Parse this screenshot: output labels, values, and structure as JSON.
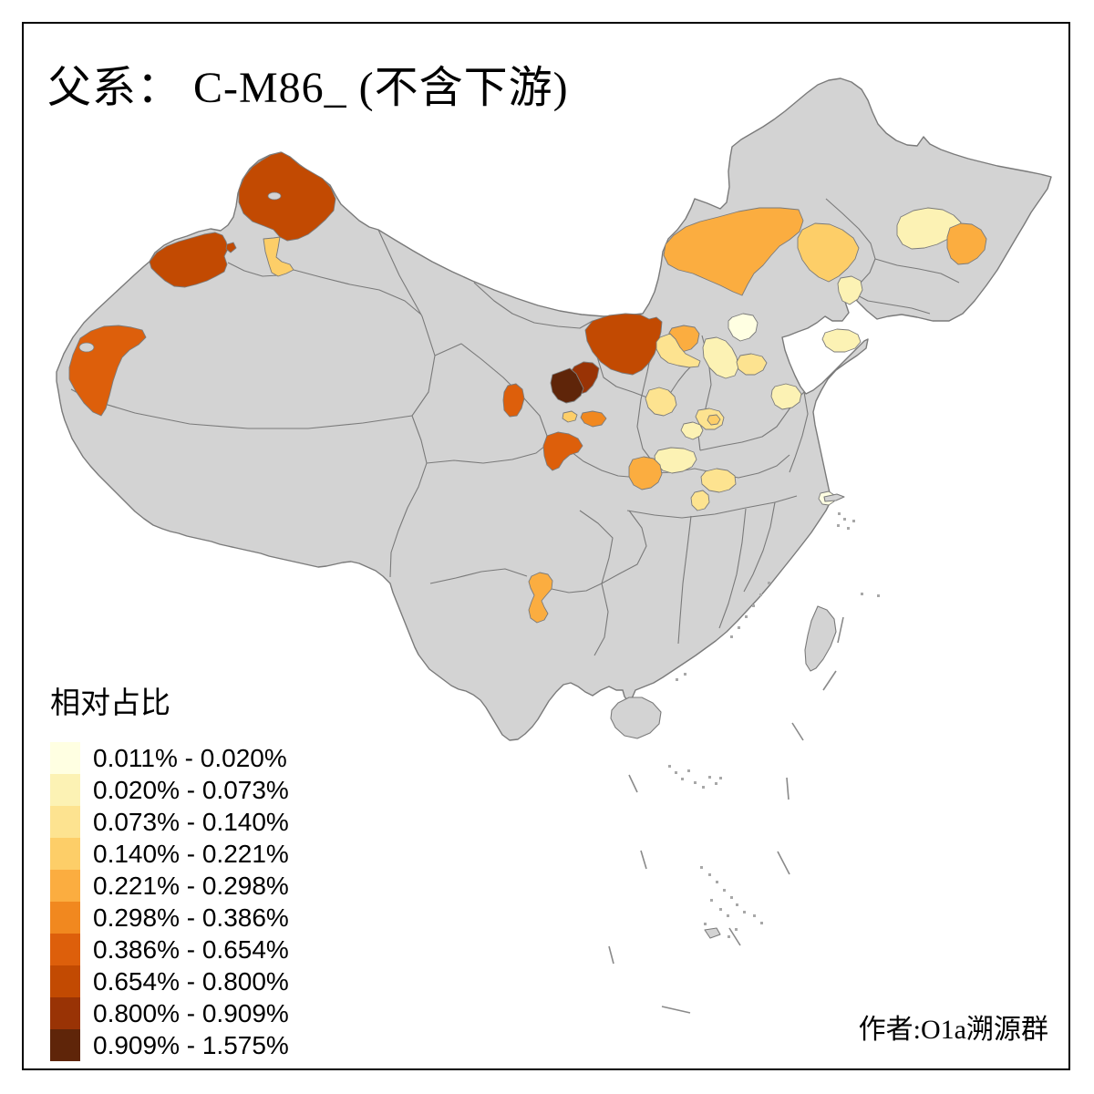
{
  "title": "父系： C-M86_ (不含下游)",
  "legend": {
    "title": "相对占比",
    "items": [
      {
        "range": "0.011% - 0.020%",
        "color": "#FFFFE2"
      },
      {
        "range": "0.020% - 0.073%",
        "color": "#FCF2B4"
      },
      {
        "range": "0.073% - 0.140%",
        "color": "#FDE390"
      },
      {
        "range": "0.140% - 0.221%",
        "color": "#FDCE68"
      },
      {
        "range": "0.221% - 0.298%",
        "color": "#FBAD40"
      },
      {
        "range": "0.298% - 0.386%",
        "color": "#F1881F"
      },
      {
        "range": "0.386% - 0.654%",
        "color": "#DD5F0B"
      },
      {
        "range": "0.654% - 0.800%",
        "color": "#C24A02"
      },
      {
        "range": "0.800% - 0.909%",
        "color": "#993305"
      },
      {
        "range": "0.909% - 1.575%",
        "color": "#5F2509"
      }
    ]
  },
  "attribution": "作者:O1a溯源群",
  "map": {
    "background": "#FFFFFF",
    "land_color": "#D3D3D3",
    "border_color": "#7A7A7A",
    "frame_color": "#000000",
    "regions": [
      {
        "id": "xinjiang-north-a",
        "bucket": 8
      },
      {
        "id": "xinjiang-west-a",
        "bucket": 8
      },
      {
        "id": "xinjiang-small-dot",
        "bucket": 8
      },
      {
        "id": "xinjiang-center-wedge",
        "bucket": 4
      },
      {
        "id": "xinjiang-southwest",
        "bucket": 7
      },
      {
        "id": "ordos-area",
        "bucket": 8
      },
      {
        "id": "ningxia-dark",
        "bucket": 9
      },
      {
        "id": "ningxia-darkest",
        "bucket": 10
      },
      {
        "id": "gansu-west",
        "bucket": 7
      },
      {
        "id": "gansu-small-a",
        "bucket": 4
      },
      {
        "id": "gansu-small-b",
        "bucket": 6
      },
      {
        "id": "lanzhou-area",
        "bucket": 7
      },
      {
        "id": "xilingol-area",
        "bucket": 5
      },
      {
        "id": "chifeng-area",
        "bucket": 4
      },
      {
        "id": "chifeng-tail",
        "bucket": 2
      },
      {
        "id": "heilongjiang-pale",
        "bucket": 2
      },
      {
        "id": "heilongjiang-orange",
        "bucket": 5
      },
      {
        "id": "shanxi-north",
        "bucket": 5
      },
      {
        "id": "shanxi-north-pale",
        "bucket": 3
      },
      {
        "id": "beijing-area",
        "bucket": 1
      },
      {
        "id": "hebei-central",
        "bucket": 2
      },
      {
        "id": "hebei-south",
        "bucket": 3
      },
      {
        "id": "shandong-peninsula",
        "bucket": 2
      },
      {
        "id": "shandong-central",
        "bucket": 2
      },
      {
        "id": "shanxi-west",
        "bucket": 3
      },
      {
        "id": "shanxi-southeast",
        "bucket": 3
      },
      {
        "id": "shanxi-southeast-dot",
        "bucket": 4
      },
      {
        "id": "shanxi-south",
        "bucket": 2
      },
      {
        "id": "henan-southwest",
        "bucket": 2
      },
      {
        "id": "hubei-northwest",
        "bucket": 5
      },
      {
        "id": "henan-south",
        "bucket": 3
      },
      {
        "id": "hubei-north-small",
        "bucket": 3
      },
      {
        "id": "shanghai-area",
        "bucket": 1
      },
      {
        "id": "yunnan-northeast",
        "bucket": 5
      }
    ]
  }
}
